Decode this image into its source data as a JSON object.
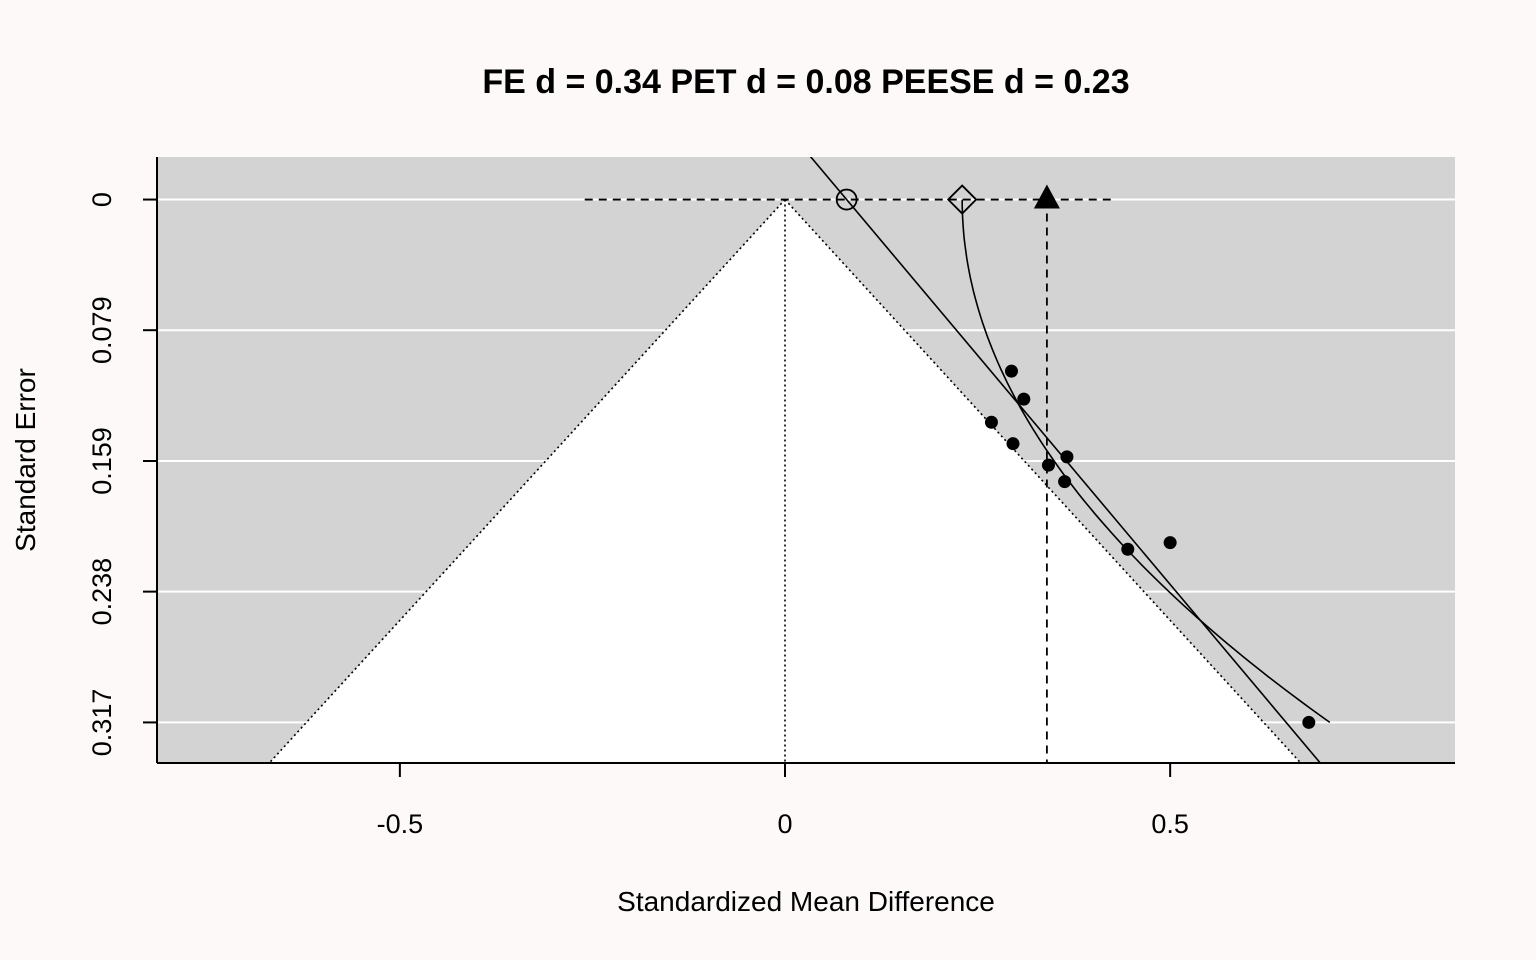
{
  "chart_data": {
    "type": "scatter",
    "title": "FE d = 0.34 PET d = 0.08 PEESE d = 0.23",
    "xlabel": "Standardized Mean Difference",
    "ylabel": "Standard Error",
    "xlim": [
      -0.8153,
      0.8698
    ],
    "ylim": [
      0.3416,
      -0.0258
    ],
    "y_reversed": true,
    "xticks": [
      {
        "value": -0.5,
        "label": "-0.5"
      },
      {
        "value": 0,
        "label": "0"
      },
      {
        "value": 0.5,
        "label": "0.5"
      }
    ],
    "yticks": [
      {
        "value": 0,
        "label": "0"
      },
      {
        "value": 0.0792,
        "label": "0.079"
      },
      {
        "value": 0.1585,
        "label": "0.159"
      },
      {
        "value": 0.2377,
        "label": "0.238"
      },
      {
        "value": 0.317,
        "label": "0.317"
      }
    ],
    "grid": true,
    "background": "#d3d3d3",
    "funnel_fill": "#ffffff",
    "funnel_center": 0,
    "funnel_z": 1.96,
    "studies": [
      {
        "x": 0.294,
        "y": 0.104
      },
      {
        "x": 0.31,
        "y": 0.121
      },
      {
        "x": 0.268,
        "y": 0.135
      },
      {
        "x": 0.296,
        "y": 0.148
      },
      {
        "x": 0.342,
        "y": 0.161
      },
      {
        "x": 0.366,
        "y": 0.156
      },
      {
        "x": 0.363,
        "y": 0.171
      },
      {
        "x": 0.445,
        "y": 0.212
      },
      {
        "x": 0.5,
        "y": 0.208
      },
      {
        "x": 0.68,
        "y": 0.317
      }
    ],
    "fe": {
      "d": 0.34,
      "ci": [
        -0.26,
        0.43
      ]
    },
    "pet": {
      "d": 0.08,
      "slope": 1.8
    },
    "peese": {
      "d": 0.23,
      "slope": 4.75
    },
    "marker_legend": {
      "fe": "filled triangle",
      "pet": "open circle",
      "peese": "open diamond"
    }
  }
}
